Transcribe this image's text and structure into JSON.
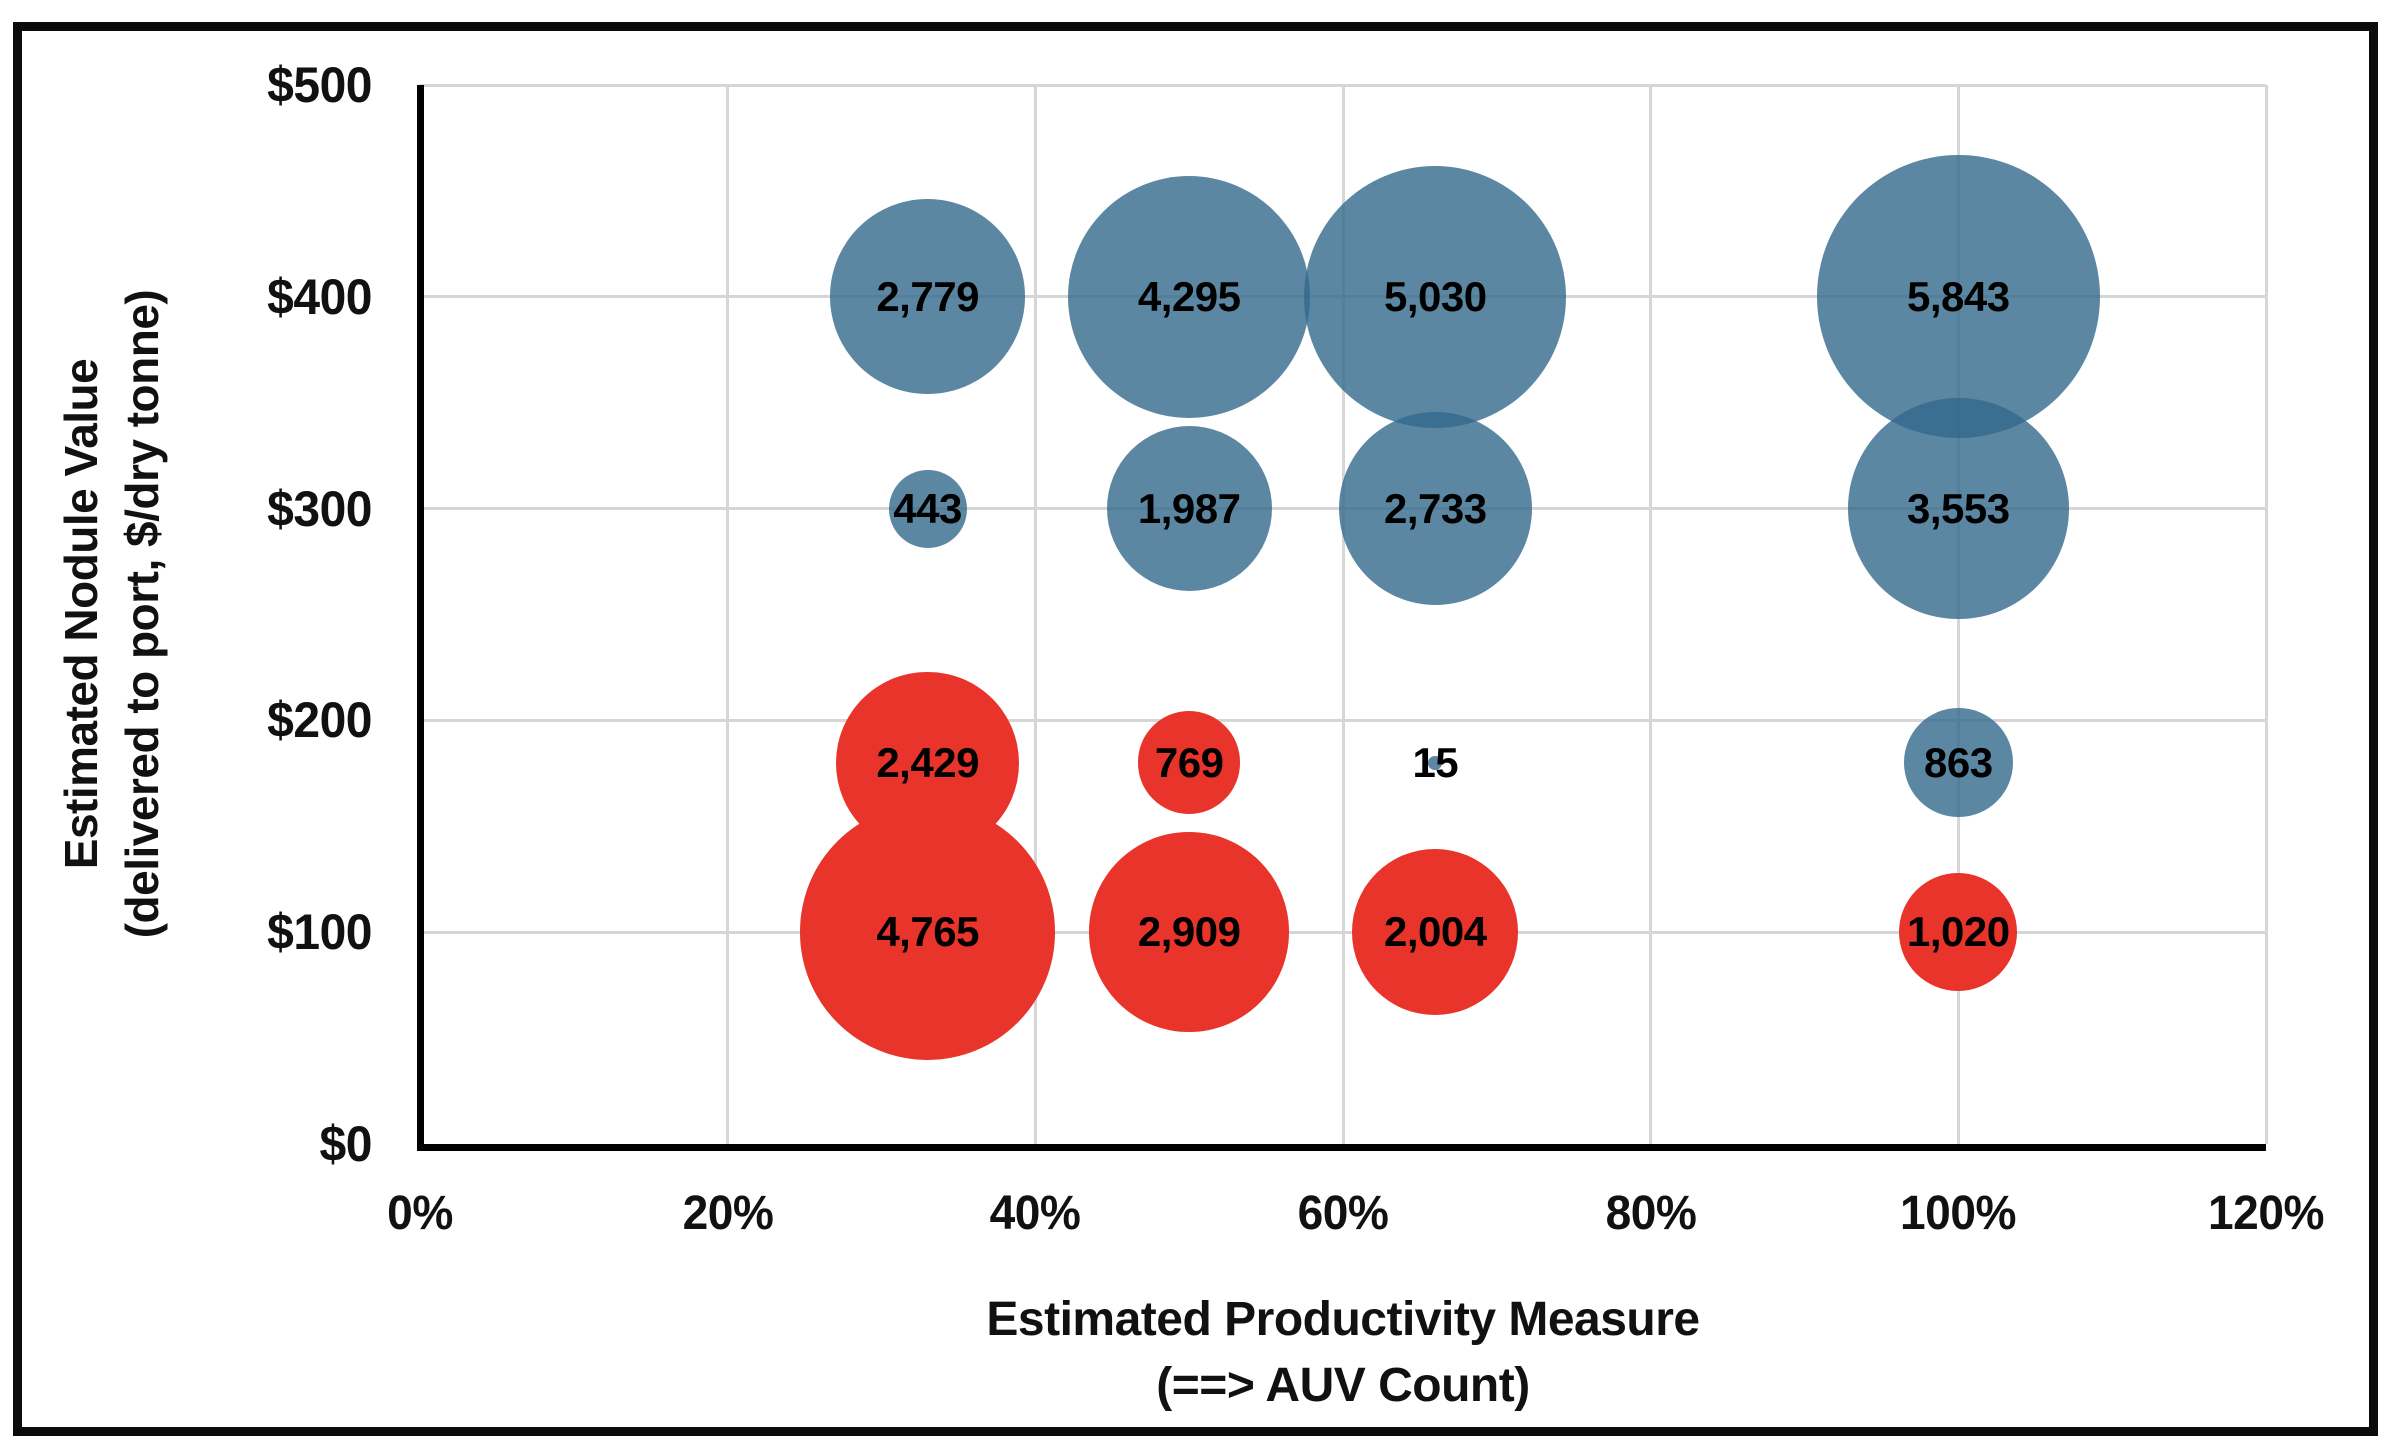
{
  "figure": {
    "background": "#ffffff",
    "frame_color": "#0b0b0b"
  },
  "chart_data": {
    "type": "scatter",
    "subtype": "bubble",
    "title": "",
    "grid": true,
    "legend": "none",
    "grid_color": "#d6d6d6",
    "axis_color": "#000000",
    "size_encoding": "bubble area proportional to value",
    "x_axis": {
      "label_lines": [
        "Estimated Productivity Measure",
        "(==> AUV Count)"
      ],
      "ticks": [
        "0%",
        "20%",
        "40%",
        "60%",
        "80%",
        "100%",
        "120%"
      ],
      "tick_values": [
        0,
        20,
        40,
        60,
        80,
        100,
        120
      ],
      "min": 0,
      "max": 120
    },
    "y_axis": {
      "label_lines": [
        "Estimated Nodule Value",
        "(delivered to port, $/dry tonne)"
      ],
      "ticks": [
        "$0",
        "$100",
        "$200",
        "$300",
        "$400",
        "$500"
      ],
      "tick_values": [
        0,
        100,
        200,
        300,
        400,
        500
      ],
      "min": 0,
      "max": 500
    },
    "series": [
      {
        "name": "blue-scenarios",
        "color": "rgba(50,105,140,0.8)",
        "flat_color": "#5b87a3",
        "points": [
          {
            "x": 33,
            "y": 400,
            "value": 2779,
            "label": "2,779"
          },
          {
            "x": 50,
            "y": 400,
            "value": 4295,
            "label": "4,295"
          },
          {
            "x": 66,
            "y": 400,
            "value": 5030,
            "label": "5,030"
          },
          {
            "x": 100,
            "y": 400,
            "value": 5843,
            "label": "5,843"
          },
          {
            "x": 33,
            "y": 300,
            "value": 443,
            "label": "443"
          },
          {
            "x": 50,
            "y": 300,
            "value": 1987,
            "label": "1,987"
          },
          {
            "x": 66,
            "y": 300,
            "value": 2733,
            "label": "2,733"
          },
          {
            "x": 100,
            "y": 300,
            "value": 3553,
            "label": "3,553"
          },
          {
            "x": 66,
            "y": 180,
            "value": 15,
            "label": "15"
          },
          {
            "x": 100,
            "y": 180,
            "value": 863,
            "label": "863"
          }
        ]
      },
      {
        "name": "red-scenarios",
        "color": "#e8342a",
        "flat_color": "#e8342a",
        "points": [
          {
            "x": 33,
            "y": 180,
            "value": 2429,
            "label": "2,429"
          },
          {
            "x": 50,
            "y": 180,
            "value": 769,
            "label": "769"
          },
          {
            "x": 33,
            "y": 100,
            "value": 4765,
            "label": "4,765"
          },
          {
            "x": 50,
            "y": 100,
            "value": 2909,
            "label": "2,909"
          },
          {
            "x": 66,
            "y": 100,
            "value": 2004,
            "label": "2,004"
          },
          {
            "x": 100,
            "y": 100,
            "value": 1020,
            "label": "1,020"
          }
        ]
      }
    ]
  }
}
